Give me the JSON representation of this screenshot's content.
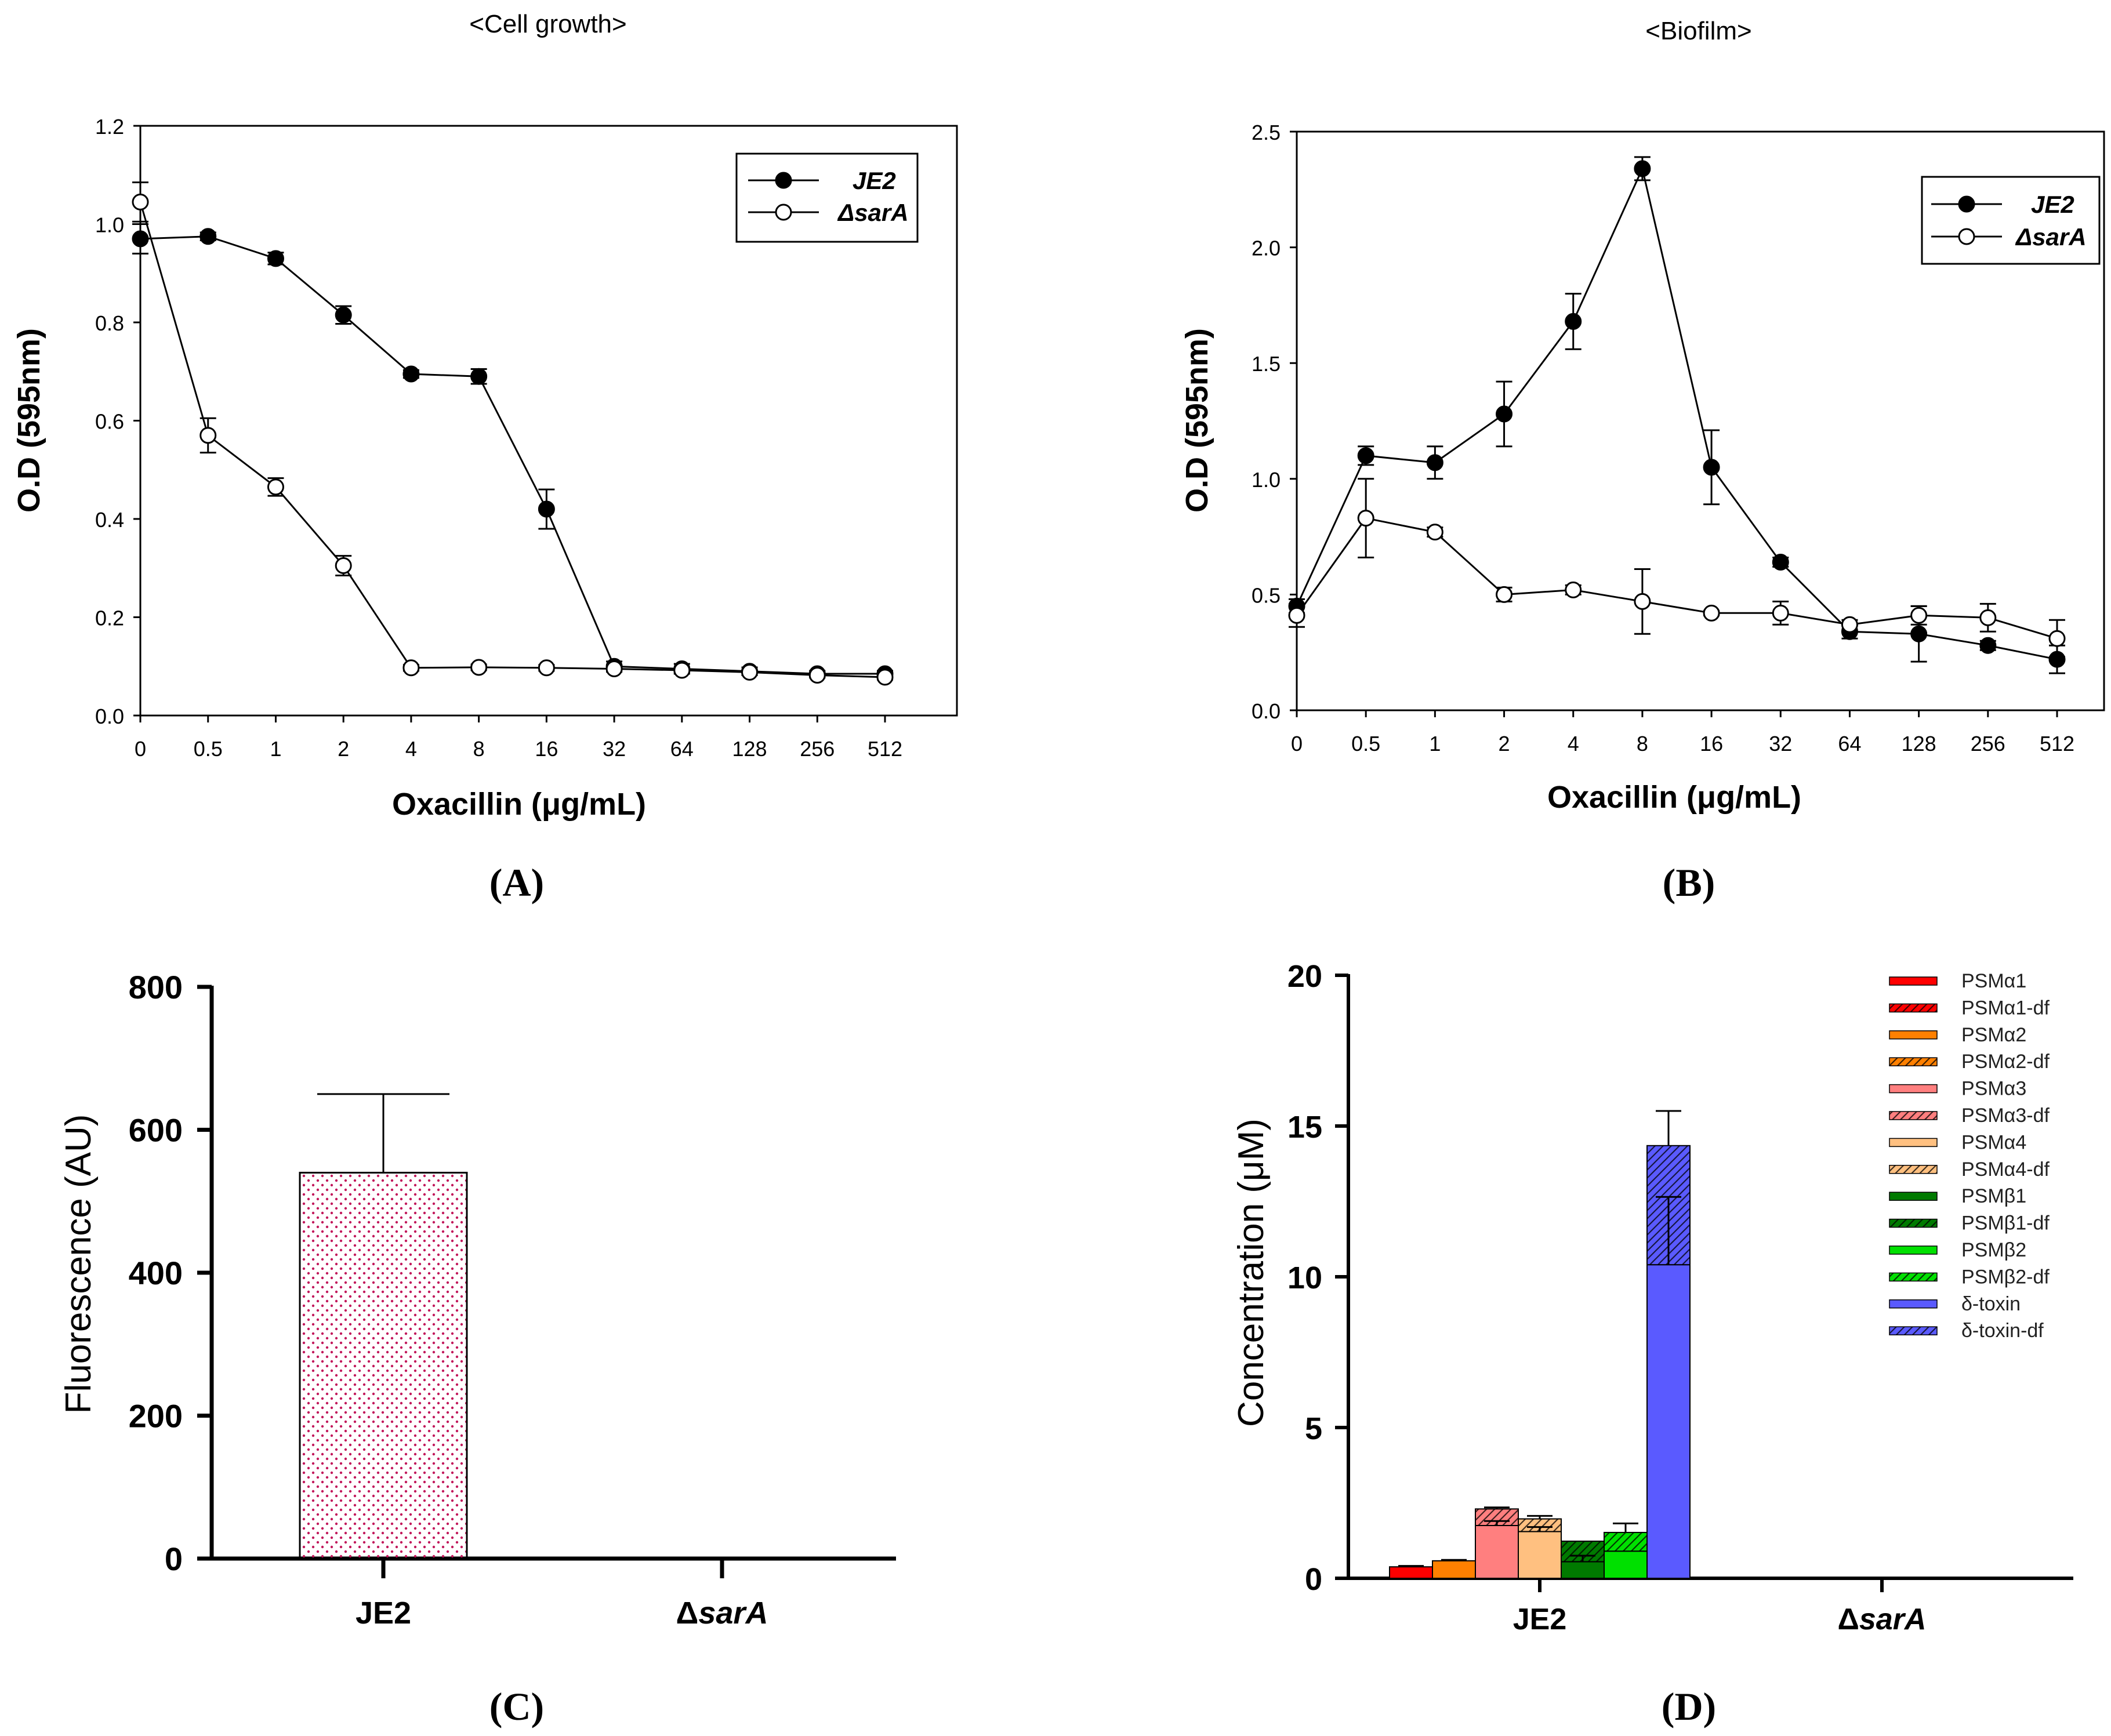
{
  "colors": {
    "axis": "#000000",
    "je2_marker": "#000000",
    "sara_marker": "#ffffff",
    "panelC_dots": "#c2185b",
    "psm_a1": "#ff0000",
    "psm_a2": "#ff8000",
    "psm_a3": "#ff7f7f",
    "psm_a4": "#ffc080",
    "psm_b1": "#007a00",
    "psm_b2": "#00e000",
    "delta_toxin": "#5a5aff"
  },
  "panels": {
    "A": {
      "label": "(A)"
    },
    "B": {
      "label": "(B)"
    },
    "C": {
      "label": "(C)"
    },
    "D": {
      "label": "(D)"
    }
  },
  "chart_data": [
    {
      "id": "A",
      "type": "line",
      "title": "<Cell growth>",
      "xlabel": "Oxacillin (μg/mL)",
      "ylabel": "O.D (595nm)",
      "categories": [
        "0",
        "0.5",
        "1",
        "2",
        "4",
        "8",
        "16",
        "32",
        "64",
        "128",
        "256",
        "512"
      ],
      "ylim": [
        0,
        1.2
      ],
      "yticks": [
        "0.0",
        "0.2",
        "0.4",
        "0.6",
        "0.8",
        "1.0",
        "1.2"
      ],
      "legend_position": "top-right",
      "series": [
        {
          "name": "JE2",
          "marker": "filled-circle",
          "values": [
            0.97,
            0.975,
            0.93,
            0.815,
            0.695,
            0.69,
            0.42,
            0.1,
            0.095,
            0.09,
            0.085,
            0.085
          ],
          "errors": [
            0.03,
            0.008,
            0.012,
            0.018,
            0.008,
            0.015,
            0.04,
            0.01,
            0.01,
            0.008,
            0.006,
            0.006
          ]
        },
        {
          "name": "ΔsarA",
          "marker": "open-circle",
          "values": [
            1.045,
            0.57,
            0.465,
            0.305,
            0.097,
            0.098,
            0.097,
            0.095,
            0.092,
            0.088,
            0.082,
            0.078
          ],
          "errors": [
            0.04,
            0.035,
            0.018,
            0.02,
            0.006,
            0.006,
            0.006,
            0.006,
            0.005,
            0.005,
            0.005,
            0.005
          ]
        }
      ]
    },
    {
      "id": "B",
      "type": "line",
      "title": "<Biofilm>",
      "xlabel": "Oxacillin (μg/mL)",
      "ylabel": "O.D (595nm)",
      "categories": [
        "0",
        "0.5",
        "1",
        "2",
        "4",
        "8",
        "16",
        "32",
        "64",
        "128",
        "256",
        "512"
      ],
      "ylim": [
        0,
        2.5
      ],
      "yticks": [
        "0.0",
        "0.5",
        "1.0",
        "1.5",
        "2.0",
        "2.5"
      ],
      "legend_position": "top-right",
      "series": [
        {
          "name": "JE2",
          "marker": "filled-circle",
          "values": [
            0.45,
            1.1,
            1.07,
            1.28,
            1.68,
            2.34,
            1.05,
            0.64,
            0.34,
            0.33,
            0.28,
            0.22
          ],
          "errors": [
            0.03,
            0.04,
            0.07,
            0.14,
            0.12,
            0.05,
            0.16,
            0.02,
            0.03,
            0.12,
            0.02,
            0.06
          ]
        },
        {
          "name": "ΔsarA",
          "marker": "open-circle",
          "values": [
            0.41,
            0.83,
            0.77,
            0.5,
            0.52,
            0.47,
            0.42,
            0.42,
            0.37,
            0.41,
            0.4,
            0.31
          ],
          "errors": [
            0.05,
            0.17,
            0.02,
            0.03,
            0.02,
            0.14,
            0.01,
            0.05,
            0.02,
            0.04,
            0.06,
            0.08
          ]
        }
      ]
    },
    {
      "id": "C",
      "type": "bar",
      "title": "",
      "xlabel": "",
      "ylabel": "Fluorescence (AU)",
      "categories": [
        {
          "main": "JE2",
          "prefix": "",
          "italic": ""
        },
        {
          "main": "",
          "prefix": "Δ",
          "italic": "sarA"
        }
      ],
      "ylim": [
        0,
        800
      ],
      "yticks": [
        "0",
        "200",
        "400",
        "600",
        "800"
      ],
      "values": [
        540,
        0
      ],
      "errors": [
        110,
        0
      ]
    },
    {
      "id": "D",
      "type": "bar",
      "title": "",
      "xlabel": "",
      "ylabel": "Concentration (μM)",
      "categories": [
        {
          "main": "JE2",
          "prefix": "",
          "italic": ""
        },
        {
          "main": "",
          "prefix": "Δ",
          "italic": "sarA"
        }
      ],
      "ylim": [
        0,
        20
      ],
      "yticks": [
        "0",
        "5",
        "10",
        "15",
        "20"
      ],
      "legend_position": "top-right",
      "legend": [
        "PSMα1",
        "PSMα1-df",
        "PSMα2",
        "PSMα2-df",
        "PSMα3",
        "PSMα3-df",
        "PSMα4",
        "PSMα4-df",
        "PSMβ1",
        "PSMβ1-df",
        "PSMβ2",
        "PSMβ2-df",
        "δ-toxin",
        "δ-toxin-df"
      ],
      "series": [
        {
          "name": "PSMα1",
          "color_key": "psm_a1",
          "base": [
            0.38,
            0
          ],
          "df": [
            0.0,
            0
          ],
          "err_base": [
            0.03,
            0
          ],
          "err_total": [
            0.0,
            0
          ]
        },
        {
          "name": "PSMα2",
          "color_key": "psm_a2",
          "base": [
            0.58,
            0
          ],
          "df": [
            0.0,
            0
          ],
          "err_base": [
            0.03,
            0
          ],
          "err_total": [
            0.0,
            0
          ]
        },
        {
          "name": "PSMα3",
          "color_key": "psm_a3",
          "base": [
            1.75,
            0
          ],
          "df": [
            0.55,
            0
          ],
          "err_base": [
            0.15,
            0
          ],
          "err_total": [
            0.05,
            0
          ]
        },
        {
          "name": "PSMα4",
          "color_key": "psm_a4",
          "base": [
            1.55,
            0.02
          ],
          "df": [
            0.42,
            0
          ],
          "err_base": [
            0.15,
            0
          ],
          "err_total": [
            0.1,
            0
          ]
        },
        {
          "name": "PSMβ1",
          "color_key": "psm_b1",
          "base": [
            0.55,
            0
          ],
          "df": [
            0.68,
            0
          ],
          "err_base": [
            0.2,
            0
          ],
          "err_total": [
            0.0,
            0
          ]
        },
        {
          "name": "PSMβ2",
          "color_key": "psm_b2",
          "base": [
            0.9,
            0
          ],
          "df": [
            0.62,
            0
          ],
          "err_base": [
            0.0,
            0
          ],
          "err_total": [
            0.3,
            0
          ]
        },
        {
          "name": "δ-toxin",
          "color_key": "delta_toxin",
          "base": [
            10.4,
            0.12
          ],
          "df": [
            3.95,
            0.05
          ],
          "err_base": [
            2.25,
            0
          ],
          "err_total": [
            1.15,
            0
          ]
        }
      ]
    }
  ]
}
